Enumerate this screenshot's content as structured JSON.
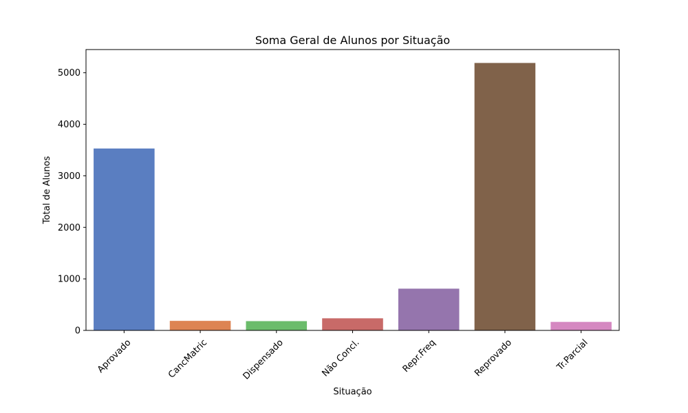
{
  "chart_data": {
    "type": "bar",
    "title": "Soma Geral de Alunos por Situação",
    "xlabel": "Situação",
    "ylabel": "Total de Alunos",
    "categories": [
      "Aprovado",
      "CancMatric",
      "Dispensado",
      "Não Concl.",
      "Repr.Freq",
      "Reprovado",
      "Tr.Parcial"
    ],
    "values": [
      3530,
      185,
      180,
      235,
      810,
      5190,
      165
    ],
    "colors": [
      "#5a7ec1",
      "#dd8453",
      "#6bbc6b",
      "#c86a68",
      "#9575ad",
      "#80624a",
      "#d588c1"
    ],
    "ylim": [
      0,
      5450
    ],
    "yticks": [
      0,
      1000,
      2000,
      3000,
      4000,
      5000
    ],
    "grid": false,
    "legend": "none"
  }
}
